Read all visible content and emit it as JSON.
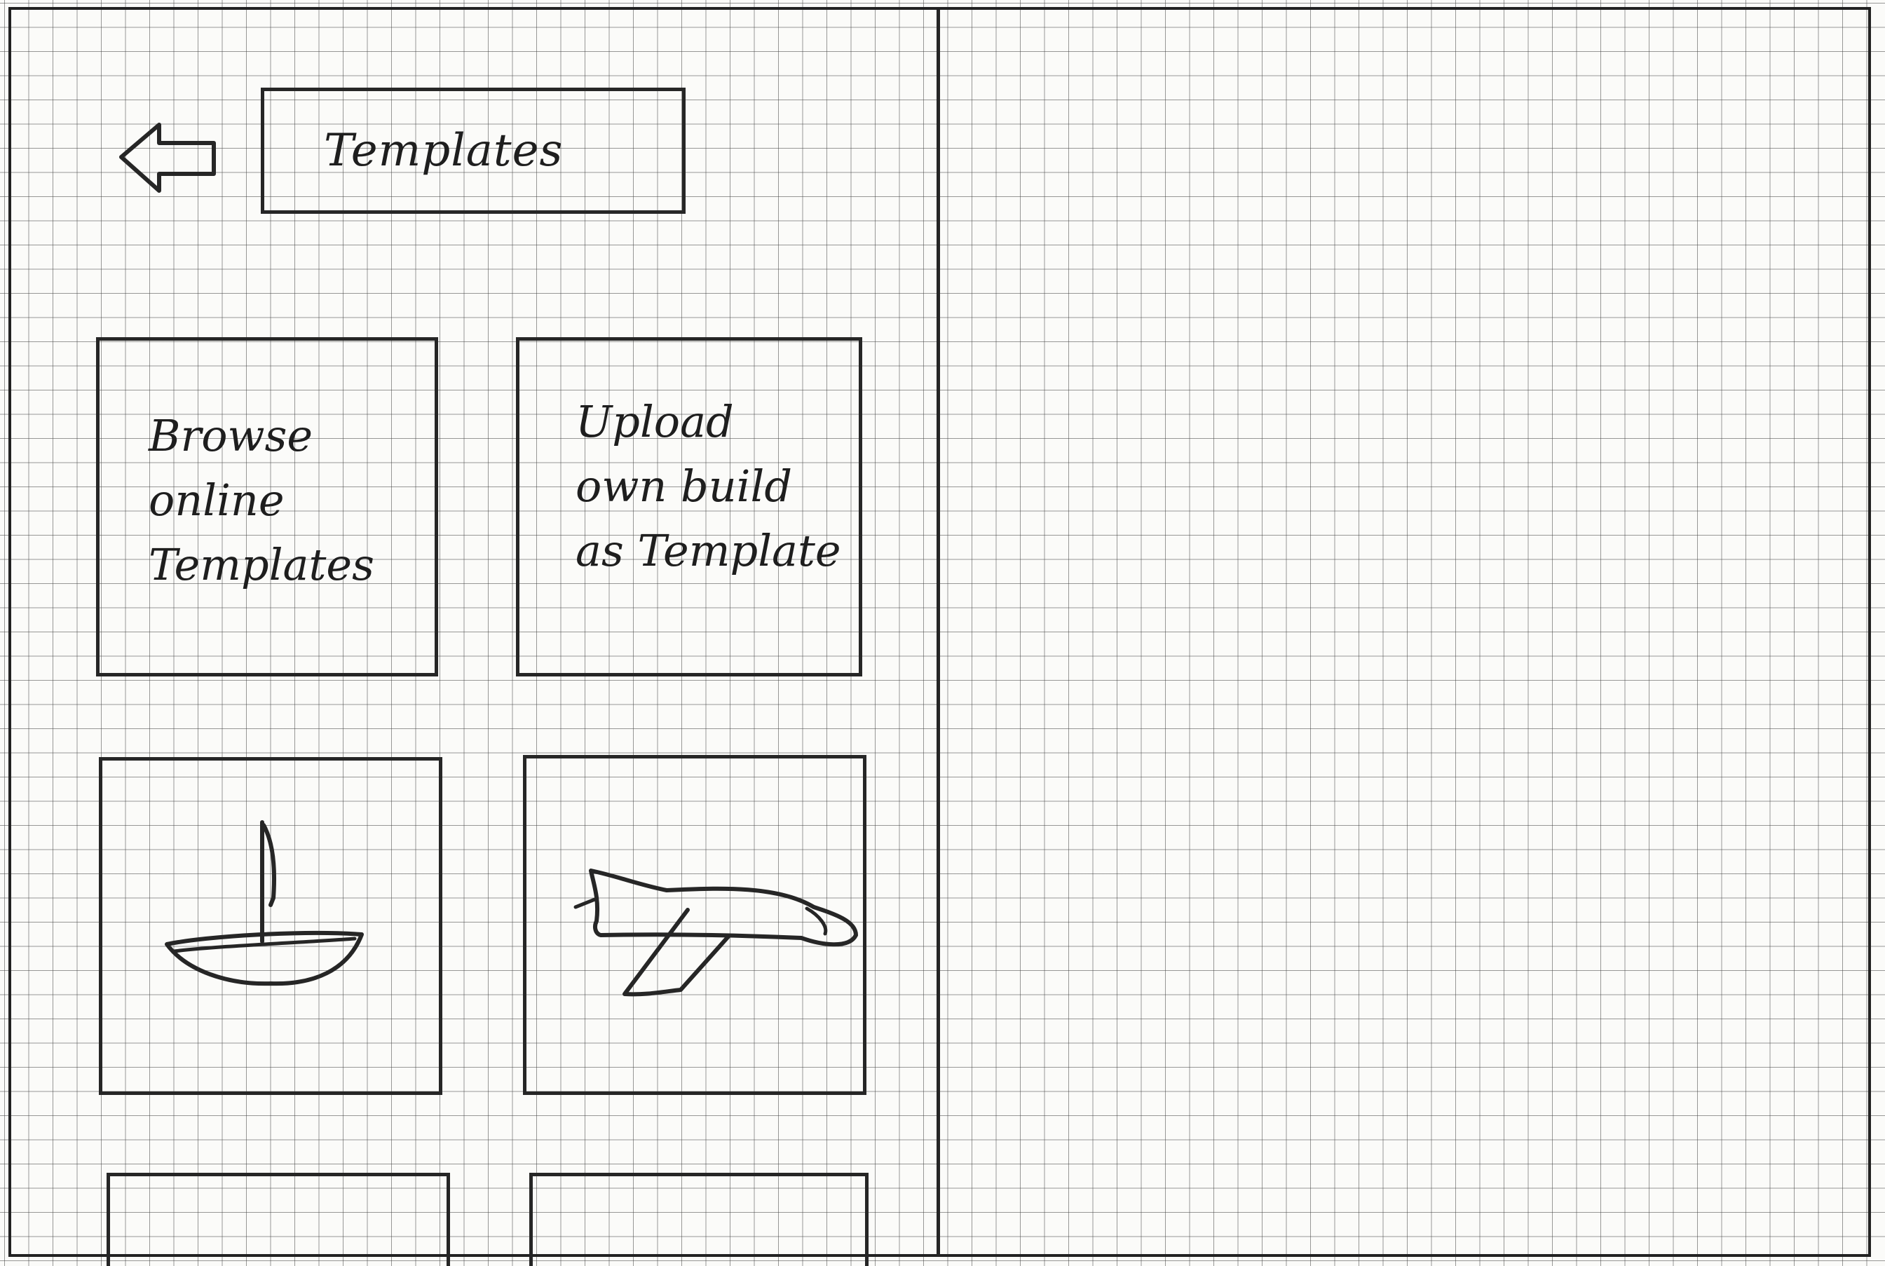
{
  "header": {
    "back_icon": "arrow-left-icon",
    "title": "Templates"
  },
  "tiles": [
    {
      "label": "Browse\nonline\nTemplates"
    },
    {
      "label": "Upload\nown build\nas Template"
    },
    {
      "label": "",
      "icon": "sailboat-icon"
    },
    {
      "label": "",
      "icon": "airplane-icon"
    }
  ],
  "colors": {
    "ink": "#262626",
    "paper": "#fbfbf9",
    "grid": "#464646"
  }
}
